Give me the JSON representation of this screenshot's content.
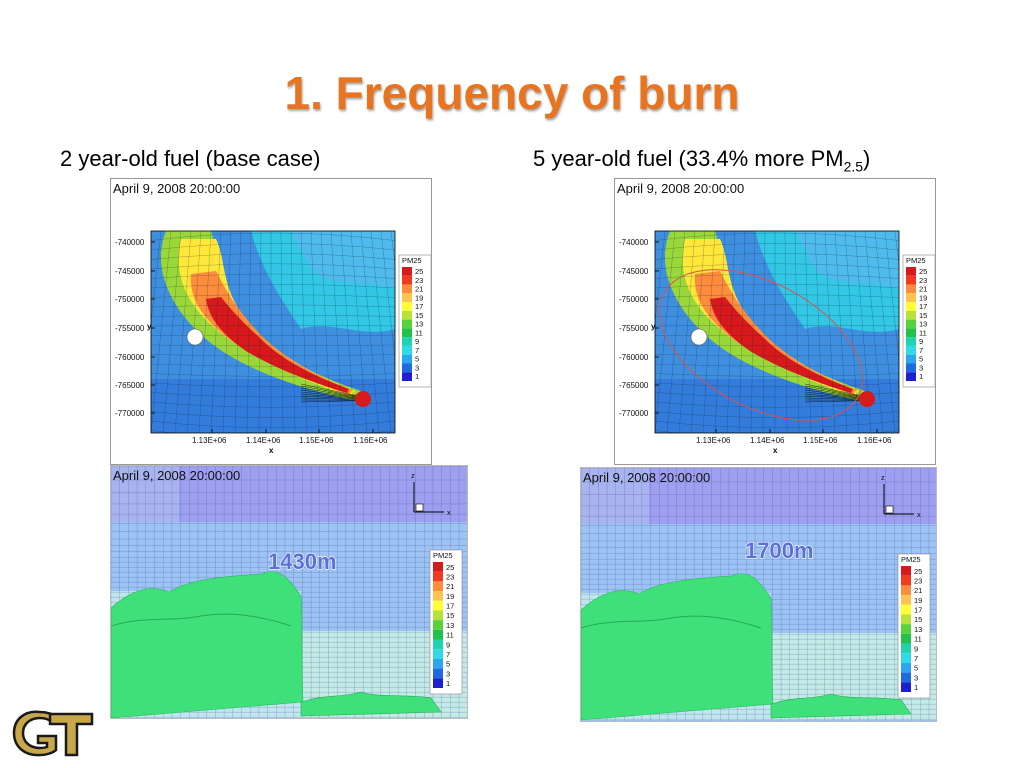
{
  "slide": {
    "title": "1. Frequency of burn",
    "left_caption": "2 year-old fuel (base case)",
    "right_caption_main": "5 year-old fuel (33.4% more PM",
    "right_caption_sub": "2.5",
    "right_caption_end": ")"
  },
  "panels": {
    "timestamp": "April 9, 2008 20:00:00",
    "y_ticks": [
      "-740000",
      "-745000",
      "-750000",
      "-755000",
      "-760000",
      "-765000",
      "-770000"
    ],
    "x_ticks": [
      "1.13E+06",
      "1.14E+06",
      "1.15E+06",
      "1.16E+06"
    ],
    "x_axis_label": "x",
    "y_axis_label": "y",
    "legend_title": "PM25",
    "legend_values": [
      "25",
      "23",
      "21",
      "19",
      "17",
      "15",
      "13",
      "11",
      "9",
      "7",
      "5",
      "3",
      "1"
    ],
    "legend_colors": [
      "#d7191c",
      "#f03b20",
      "#fd8d3c",
      "#fec44f",
      "#ffff33",
      "#b8e13a",
      "#5ad13a",
      "#22c24a",
      "#1fd3b0",
      "#2fd9e6",
      "#2ba6f0",
      "#1f6ae0",
      "#1f1fd0"
    ],
    "axis_z": "z",
    "axis_x": "x",
    "height_left": "1430m",
    "height_right": "1700m"
  },
  "logo": {
    "text": "GT"
  }
}
